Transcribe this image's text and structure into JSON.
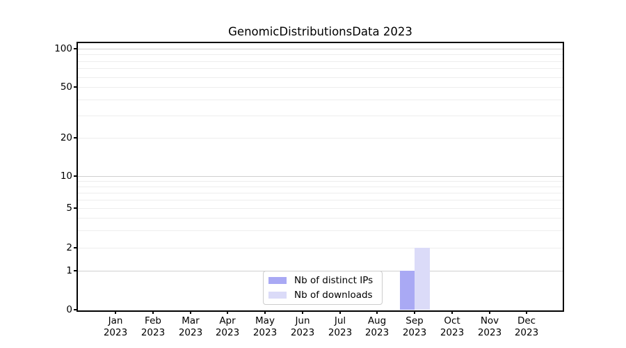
{
  "chart_data": {
    "type": "bar",
    "title": "GenomicDistributionsData 2023",
    "scale_y": "symlog",
    "categories": [
      "Jan",
      "Feb",
      "Mar",
      "Apr",
      "May",
      "Jun",
      "Jul",
      "Aug",
      "Sep",
      "Oct",
      "Nov",
      "Dec"
    ],
    "year_label": "2023",
    "series": [
      {
        "name": "Nb of distinct IPs",
        "color": "#a9a9f4",
        "values": [
          0,
          0,
          0,
          0,
          0,
          0,
          0,
          0,
          1,
          0,
          0,
          0
        ]
      },
      {
        "name": "Nb of downloads",
        "color": "#dbdbf8",
        "values": [
          0,
          0,
          0,
          0,
          0,
          0,
          0,
          0,
          2,
          0,
          0,
          0
        ]
      }
    ],
    "y_ticks": [
      0,
      1,
      2,
      5,
      10,
      20,
      50,
      100
    ],
    "ylim": [
      0,
      112
    ],
    "grid": "horizontal",
    "legend_position": "bottom-center",
    "colors": {
      "grid_major": "#cfcfcf",
      "grid_minor": "#ededed",
      "spine": "#000000",
      "background": "#ffffff"
    }
  }
}
